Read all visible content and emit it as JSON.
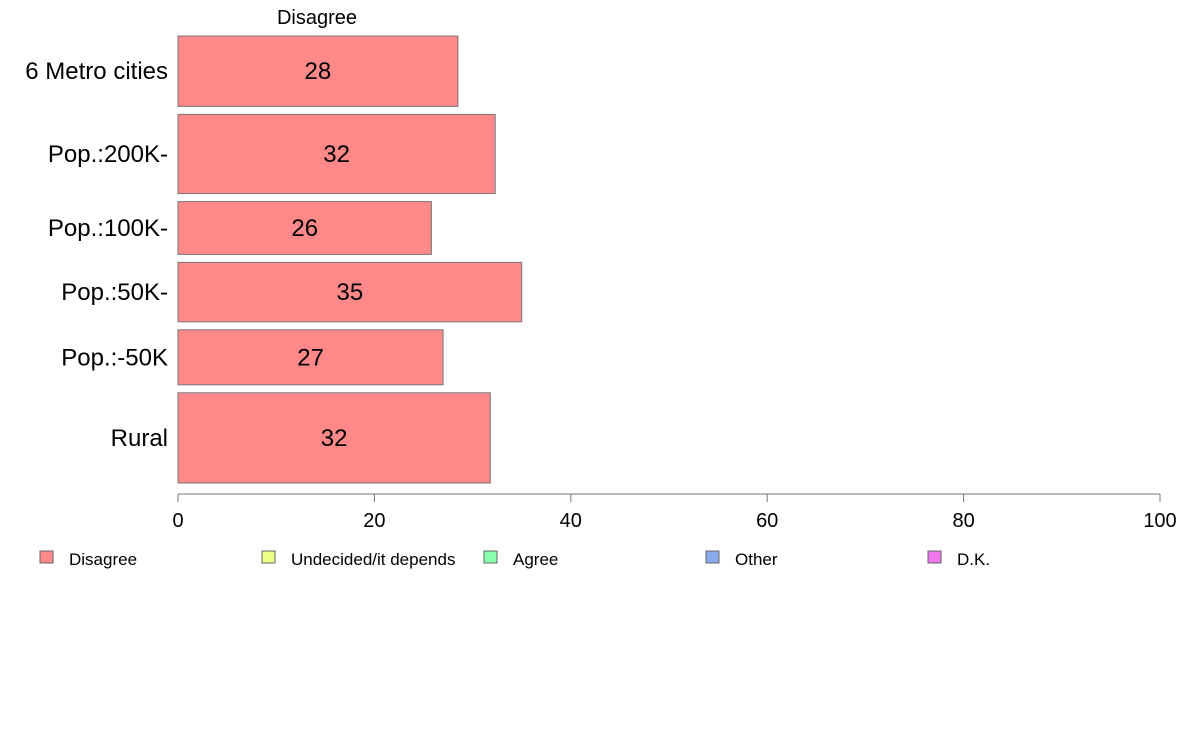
{
  "chart_data": {
    "type": "bar",
    "orientation": "horizontal",
    "panel_title": "Disagree",
    "categories": [
      "6 Metro cities",
      "Pop.:200K-",
      "Pop.:100K-",
      "Pop.:50K-",
      "Pop.:-50K",
      "Rural"
    ],
    "category_weights": [
      0.16,
      0.18,
      0.12,
      0.135,
      0.125,
      0.205
    ],
    "series": [
      {
        "name": "Disagree",
        "values": [
          28.5,
          32.3,
          25.8,
          35.0,
          27.0,
          31.8
        ],
        "labels": [
          "28",
          "32",
          "26",
          "35",
          "27",
          "32"
        ],
        "color": "#ff8888"
      }
    ],
    "xlim": [
      0,
      100
    ],
    "xticks": [
      0,
      20,
      40,
      60,
      80,
      100
    ],
    "legend": {
      "placement": "bottom",
      "items": [
        {
          "label": "Disagree",
          "color": "#ff8888"
        },
        {
          "label": "Undecided/it depends",
          "color": "#eeff88"
        },
        {
          "label": "Agree",
          "color": "#88ffaa"
        },
        {
          "label": "Other",
          "color": "#88aaee"
        },
        {
          "label": "D.K.",
          "color": "#ee77ee"
        }
      ]
    }
  }
}
